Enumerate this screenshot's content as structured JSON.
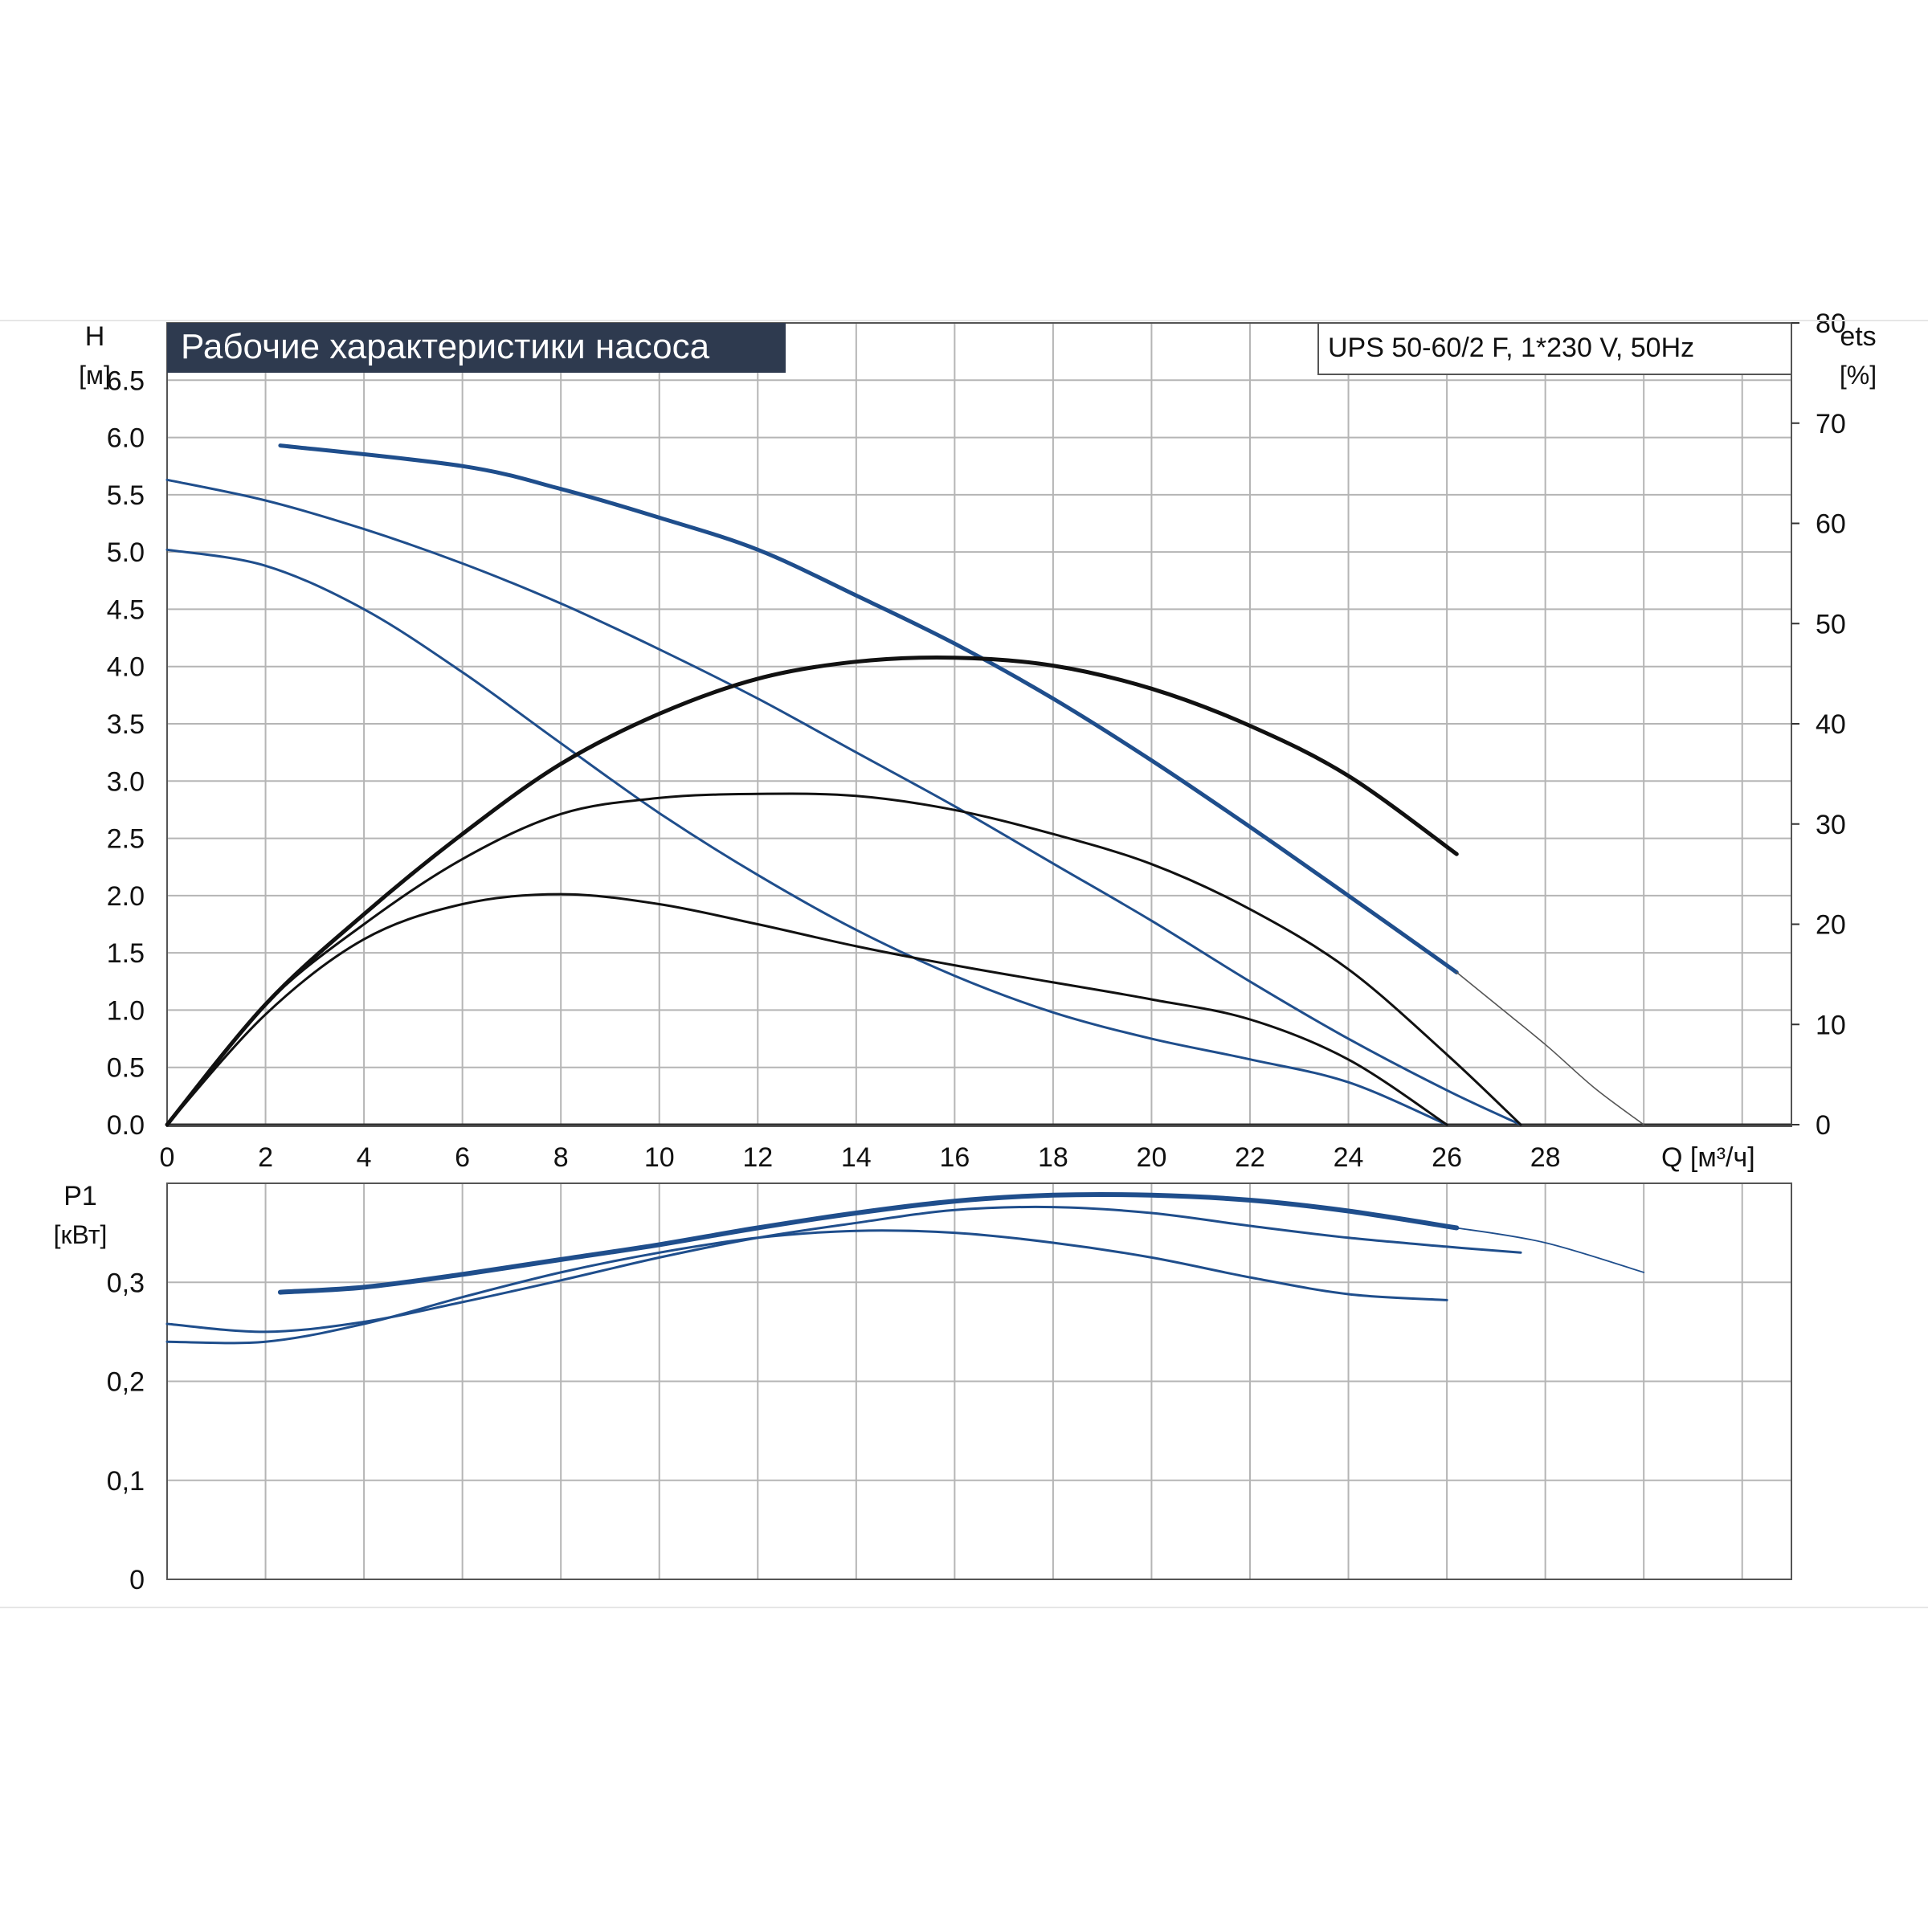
{
  "chart_data": [
    {
      "type": "line",
      "title": "Рабочие характеристики насоса",
      "model_label": "UPS 50-60/2 F, 1*230 V, 50Hz",
      "ylabel": "H",
      "yunit": "[м]",
      "y2label": "ets",
      "y2unit": "[%]",
      "xlabel": "Q [м³/ч]",
      "xlim": [
        0,
        33
      ],
      "ylim": [
        0,
        7.0
      ],
      "y2lim": [
        0,
        80
      ],
      "grid": true,
      "x_ticks": [
        "0",
        "2",
        "4",
        "6",
        "8",
        "10",
        "12",
        "14",
        "16",
        "18",
        "20",
        "22",
        "24",
        "26",
        "28"
      ],
      "y_ticks": [
        "0.0",
        "0.5",
        "1.0",
        "1.5",
        "2.0",
        "2.5",
        "3.0",
        "3.5",
        "4.0",
        "4.5",
        "5.0",
        "5.5",
        "6.0",
        "6.5"
      ],
      "y2_ticks": [
        "0",
        "10",
        "20",
        "30",
        "40",
        "50",
        "60",
        "70",
        "80"
      ],
      "series": [
        {
          "axis": "H",
          "color": "#1f4e8c",
          "points": [
            [
              2.3,
              5.93
            ],
            [
              6,
              5.75
            ],
            [
              8,
              5.55
            ],
            [
              10,
              5.3
            ],
            [
              12,
              5.02
            ],
            [
              14,
              4.62
            ],
            [
              16,
              4.2
            ],
            [
              18,
              3.72
            ],
            [
              20,
              3.18
            ],
            [
              22,
              2.6
            ],
            [
              24,
              2.0
            ],
            [
              26.2,
              1.33
            ]
          ]
        },
        {
          "axis": "H",
          "color": "#1f4e8c",
          "points": [
            [
              0,
              5.63
            ],
            [
              2,
              5.45
            ],
            [
              4,
              5.2
            ],
            [
              6,
              4.9
            ],
            [
              8,
              4.55
            ],
            [
              10,
              4.15
            ],
            [
              12,
              3.72
            ],
            [
              14,
              3.25
            ],
            [
              16,
              2.78
            ],
            [
              18,
              2.28
            ],
            [
              20,
              1.78
            ],
            [
              22,
              1.25
            ],
            [
              24,
              0.75
            ],
            [
              26,
              0.3
            ],
            [
              27.5,
              0.0
            ]
          ]
        },
        {
          "axis": "H",
          "color": "#1f4e8c",
          "points": [
            [
              0,
              5.02
            ],
            [
              2,
              4.88
            ],
            [
              4,
              4.5
            ],
            [
              6,
              3.95
            ],
            [
              8,
              3.33
            ],
            [
              10,
              2.72
            ],
            [
              12,
              2.18
            ],
            [
              14,
              1.7
            ],
            [
              16,
              1.3
            ],
            [
              18,
              0.98
            ],
            [
              20,
              0.75
            ],
            [
              22,
              0.57
            ],
            [
              24,
              0.37
            ],
            [
              26,
              0.0
            ]
          ]
        },
        {
          "axis": "H",
          "color": "#555555",
          "points": [
            [
              26.2,
              1.33
            ],
            [
              27,
              1.05
            ],
            [
              28,
              0.7
            ],
            [
              29,
              0.32
            ],
            [
              30,
              0.0
            ]
          ]
        },
        {
          "axis": "eta",
          "color": "#111111",
          "points": [
            [
              0,
              0
            ],
            [
              2,
              12
            ],
            [
              4,
              21
            ],
            [
              6,
              29
            ],
            [
              8,
              36
            ],
            [
              10,
              41
            ],
            [
              12,
              44.5
            ],
            [
              14,
              46.2
            ],
            [
              16,
              46.6
            ],
            [
              18,
              45.8
            ],
            [
              20,
              43.5
            ],
            [
              22,
              39.8
            ],
            [
              24,
              34.8
            ],
            [
              26.2,
              27
            ]
          ]
        },
        {
          "axis": "eta",
          "color": "#111111",
          "points": [
            [
              0,
              0
            ],
            [
              2,
              12
            ],
            [
              4,
              20
            ],
            [
              6,
              26.5
            ],
            [
              8,
              31
            ],
            [
              10,
              32.6
            ],
            [
              12,
              33.0
            ],
            [
              14,
              32.8
            ],
            [
              16,
              31.4
            ],
            [
              18,
              29
            ],
            [
              20,
              26
            ],
            [
              22,
              21.5
            ],
            [
              24,
              15.5
            ],
            [
              26,
              7.0
            ],
            [
              27.5,
              0.0
            ]
          ]
        },
        {
          "axis": "eta",
          "color": "#111111",
          "points": [
            [
              0,
              0
            ],
            [
              2,
              11
            ],
            [
              4,
              18.5
            ],
            [
              6,
              22
            ],
            [
              8,
              23
            ],
            [
              10,
              22
            ],
            [
              12,
              20
            ],
            [
              14,
              17.8
            ],
            [
              16,
              15.9
            ],
            [
              18,
              14.2
            ],
            [
              20,
              12.5
            ],
            [
              22,
              10.5
            ],
            [
              24,
              6.5
            ],
            [
              26,
              0.0
            ]
          ]
        }
      ]
    },
    {
      "type": "line",
      "ylabel": "P1",
      "yunit": "[кВт]",
      "xlim": [
        0,
        33
      ],
      "ylim": [
        0,
        0.4
      ],
      "grid": true,
      "y_ticks": [
        "0",
        "0,1",
        "0,2",
        "0,3"
      ],
      "series": [
        {
          "color": "#1f4e8c",
          "points": [
            [
              2.3,
              0.29
            ],
            [
              4,
              0.295
            ],
            [
              6,
              0.308
            ],
            [
              8,
              0.323
            ],
            [
              10,
              0.338
            ],
            [
              12,
              0.355
            ],
            [
              14,
              0.37
            ],
            [
              16,
              0.382
            ],
            [
              18,
              0.388
            ],
            [
              20,
              0.388
            ],
            [
              22,
              0.383
            ],
            [
              24,
              0.372
            ],
            [
              26.2,
              0.355
            ]
          ]
        },
        {
          "color": "#1f4e8c",
          "points": [
            [
              0,
              0.258
            ],
            [
              2,
              0.25
            ],
            [
              4,
              0.26
            ],
            [
              6,
              0.28
            ],
            [
              8,
              0.302
            ],
            [
              10,
              0.325
            ],
            [
              12,
              0.345
            ],
            [
              14,
              0.36
            ],
            [
              16,
              0.373
            ],
            [
              18,
              0.376
            ],
            [
              20,
              0.37
            ],
            [
              22,
              0.357
            ],
            [
              24,
              0.345
            ],
            [
              26,
              0.336
            ],
            [
              27.5,
              0.33
            ]
          ]
        },
        {
          "color": "#1f4e8c",
          "points": [
            [
              0,
              0.24
            ],
            [
              2,
              0.24
            ],
            [
              4,
              0.258
            ],
            [
              6,
              0.285
            ],
            [
              8,
              0.31
            ],
            [
              10,
              0.33
            ],
            [
              12,
              0.345
            ],
            [
              14,
              0.352
            ],
            [
              16,
              0.35
            ],
            [
              18,
              0.34
            ],
            [
              20,
              0.325
            ],
            [
              22,
              0.305
            ],
            [
              24,
              0.288
            ],
            [
              26,
              0.282
            ]
          ]
        },
        {
          "color": "#1f4e8c",
          "points": [
            [
              26.2,
              0.355
            ],
            [
              28,
              0.34
            ],
            [
              30,
              0.31
            ]
          ]
        }
      ]
    }
  ]
}
